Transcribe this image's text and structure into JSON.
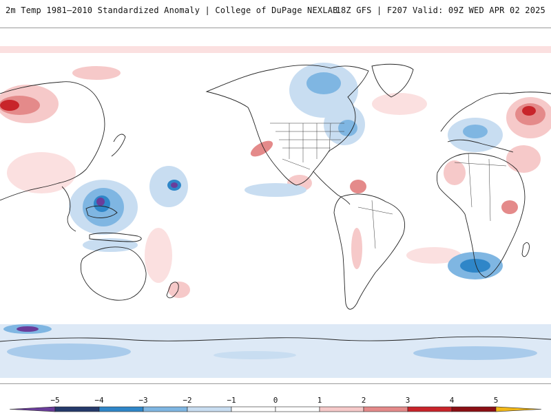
{
  "header": {
    "title_left": "2m Temp 1981–2010 Standardized Anomaly | College of DuPage NEXLAB",
    "title_right": "18Z GFS | F207 Valid: 09Z WED APR 02 2025"
  },
  "map": {
    "projection": "equirectangular",
    "field": "2m temperature standardized anomaly"
  },
  "legend": {
    "ticks": [
      "−5",
      "−4",
      "−3",
      "−2",
      "−1",
      "0",
      "1",
      "2",
      "3",
      "4",
      "5"
    ],
    "colors": {
      "lt_minus5": "#6a3d9a",
      "minus5_minus4": "#253a6b",
      "minus4_minus3": "#2f86c8",
      "minus3_minus2": "#7fb6e2",
      "minus2_minus1": "#c8ddf1",
      "minus1_0": "#ffffff",
      "0_1": "#ffffff",
      "1_2": "#f6c9c9",
      "2_3": "#e48a8a",
      "3_4": "#c8242a",
      "4_5": "#8b0f14",
      "gt_5": "#f2b818"
    }
  }
}
